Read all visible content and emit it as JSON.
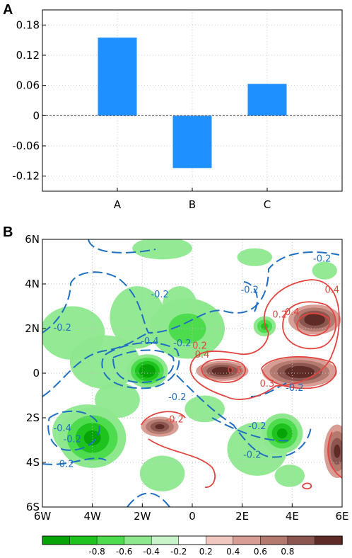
{
  "panels": {
    "a": {
      "label": "A",
      "chart_data": {
        "type": "bar",
        "categories": [
          "A",
          "B",
          "C"
        ],
        "values": [
          0.155,
          -0.104,
          0.063
        ],
        "ylim": [
          -0.15,
          0.21
        ],
        "yticks": [
          -0.12,
          -0.06,
          0,
          0.06,
          0.12,
          0.18
        ],
        "ytick_labels": [
          "-0.12",
          "-0.06",
          "0",
          "0.06",
          "0.12",
          "0.18"
        ],
        "bar_color": "#1e90ff",
        "grid": true,
        "zero_line": true
      }
    },
    "b": {
      "label": "B",
      "chart_data": {
        "type": "heatmap",
        "x_range": [
          -6,
          6
        ],
        "y_range": [
          -6,
          6
        ],
        "xticks": [
          -6,
          -4,
          -2,
          0,
          2,
          4,
          6
        ],
        "xtick_labels": [
          "6W",
          "4W",
          "2W",
          "0",
          "2E",
          "4E",
          "6E"
        ],
        "yticks": [
          -6,
          -4,
          -2,
          0,
          2,
          4,
          6
        ],
        "ytick_labels": [
          "6S",
          "4S",
          "2S",
          "0",
          "2N",
          "4N",
          "6N"
        ],
        "grid": true,
        "colorbar": {
          "levels": [
            -0.8,
            -0.6,
            -0.4,
            -0.2,
            0.2,
            0.4,
            0.6,
            0.8
          ],
          "labels": [
            "-0.8",
            "-0.6",
            "-0.4",
            "-0.2",
            "0.2",
            "0.4",
            "0.6",
            "0.8"
          ],
          "colors": [
            "#06a406",
            "#1ec31e",
            "#4ddc4d",
            "#8ee88e",
            "#c9f3c9",
            "#ffffff",
            "#f1c8c0",
            "#d89e96",
            "#b47a70",
            "#8c5650",
            "#5e2b27"
          ]
        },
        "shading": [
          {
            "x": -4.0,
            "y": -2.9,
            "rx": 0.9,
            "ry": 0.9,
            "level": -0.5
          },
          {
            "x": -1.8,
            "y": 0.1,
            "rx": 0.55,
            "ry": 0.5,
            "level": -0.75
          },
          {
            "x": -0.2,
            "y": 2.0,
            "rx": 1.0,
            "ry": 0.9,
            "level": -0.25
          },
          {
            "x": 2.9,
            "y": 2.1,
            "rx": 0.3,
            "ry": 0.3,
            "level": -0.35
          },
          {
            "x": 3.6,
            "y": -2.7,
            "rx": 0.55,
            "ry": 0.6,
            "level": -0.7
          },
          {
            "x": 1.2,
            "y": 0.1,
            "rx": 0.7,
            "ry": 0.3,
            "level": 0.75
          },
          {
            "x": 4.3,
            "y": 0.05,
            "rx": 1.0,
            "ry": 0.45,
            "level": 0.85
          },
          {
            "x": 4.9,
            "y": 2.4,
            "rx": 0.7,
            "ry": 0.45,
            "level": 0.85
          },
          {
            "x": -1.3,
            "y": -2.4,
            "rx": 0.5,
            "ry": 0.3,
            "level": 0.55
          },
          {
            "x": 5.8,
            "y": -3.5,
            "rx": 0.35,
            "ry": 0.8,
            "level": 0.5
          }
        ],
        "contour_labels": [
          {
            "text": "-0.2",
            "x": 5.2,
            "y": 5.0,
            "color": "blue"
          },
          {
            "text": "-0.2",
            "x": 2.3,
            "y": 3.6,
            "color": "blue"
          },
          {
            "text": "-0.2",
            "x": -1.3,
            "y": 3.4,
            "color": "blue"
          },
          {
            "text": "-0.2",
            "x": -5.2,
            "y": 1.9,
            "color": "blue"
          },
          {
            "text": "-0.4",
            "x": -1.7,
            "y": 1.3,
            "color": "blue"
          },
          {
            "text": "-0.2",
            "x": -0.4,
            "y": 1.2,
            "color": "blue"
          },
          {
            "text": "-0.2",
            "x": -0.6,
            "y": -1.2,
            "color": "blue"
          },
          {
            "text": "-0.4",
            "x": -5.2,
            "y": -2.6,
            "color": "blue"
          },
          {
            "text": "-0.2",
            "x": -4.8,
            "y": -3.1,
            "color": "blue"
          },
          {
            "text": "-0.2",
            "x": -5.1,
            "y": -4.2,
            "color": "blue"
          },
          {
            "text": "-0.2",
            "x": 2.6,
            "y": -2.5,
            "color": "blue"
          },
          {
            "text": "-0.2",
            "x": 2.4,
            "y": -3.8,
            "color": "blue"
          },
          {
            "text": "-0.2",
            "x": 4.1,
            "y": -0.8,
            "color": "blue"
          },
          {
            "text": "0.4",
            "x": 5.6,
            "y": 3.6,
            "color": "red"
          },
          {
            "text": "0.2",
            "x": 3.5,
            "y": 2.5,
            "color": "red"
          },
          {
            "text": "0.4",
            "x": 4.0,
            "y": 2.6,
            "color": "red"
          },
          {
            "text": "0.2",
            "x": 0.3,
            "y": 1.1,
            "color": "red"
          },
          {
            "text": "0.4",
            "x": 0.4,
            "y": 0.7,
            "color": "red"
          },
          {
            "text": "0.3",
            "x": 3.0,
            "y": -0.6,
            "color": "red"
          },
          {
            "text": "0.6",
            "x": 1.7,
            "y": 0.0,
            "color": "red"
          },
          {
            "text": "-0.2",
            "x": -0.7,
            "y": -2.2,
            "color": "red"
          }
        ]
      }
    }
  }
}
